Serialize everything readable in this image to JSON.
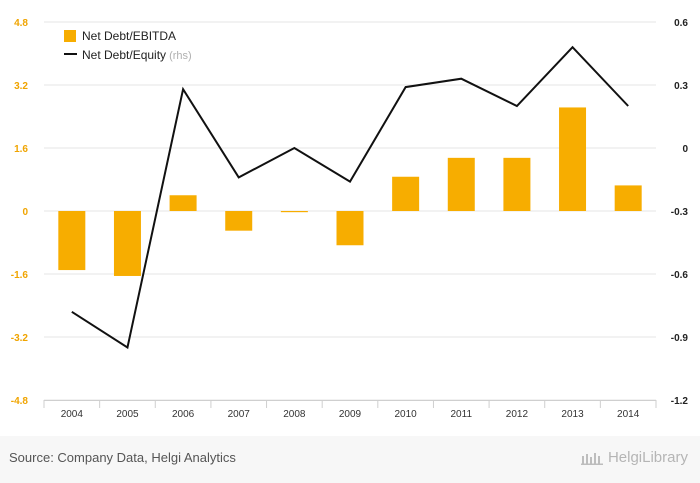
{
  "chart_data": {
    "type": "bar+line",
    "categories": [
      "2004",
      "2005",
      "2006",
      "2007",
      "2008",
      "2009",
      "2010",
      "2011",
      "2012",
      "2013",
      "2014"
    ],
    "series": [
      {
        "name": "Net Debt/EBITDA",
        "type": "bar",
        "axis": "left",
        "color": "#f7ad00",
        "values": [
          -1.5,
          -1.65,
          0.4,
          -0.5,
          -0.03,
          -0.87,
          0.87,
          1.35,
          1.35,
          2.63,
          0.65
        ]
      },
      {
        "name": "Net Debt/Equity",
        "suffix": " (rhs)",
        "type": "line",
        "axis": "right",
        "color": "#111111",
        "values": [
          -0.78,
          -0.95,
          0.28,
          -0.14,
          0.0,
          -0.16,
          0.29,
          0.33,
          0.2,
          0.48,
          0.2
        ]
      }
    ],
    "left_axis": {
      "ticks": [
        "4.8",
        "3.2",
        "1.6",
        "0",
        "-1.6",
        "-3.2",
        "-4.8"
      ],
      "ylim": [
        -4.8,
        4.8
      ],
      "color": "#f0a400"
    },
    "right_axis": {
      "ticks": [
        "0.6",
        "0.3",
        "0",
        "-0.3",
        "-0.6",
        "-0.9",
        "-1.2"
      ],
      "ylim": [
        -1.2,
        0.6
      ],
      "color": "#222222"
    },
    "legend_position": "top-left",
    "grid": true
  },
  "footer": {
    "source": "Source: Company Data, Helgi Analytics",
    "brand": "HelgiLibrary"
  }
}
